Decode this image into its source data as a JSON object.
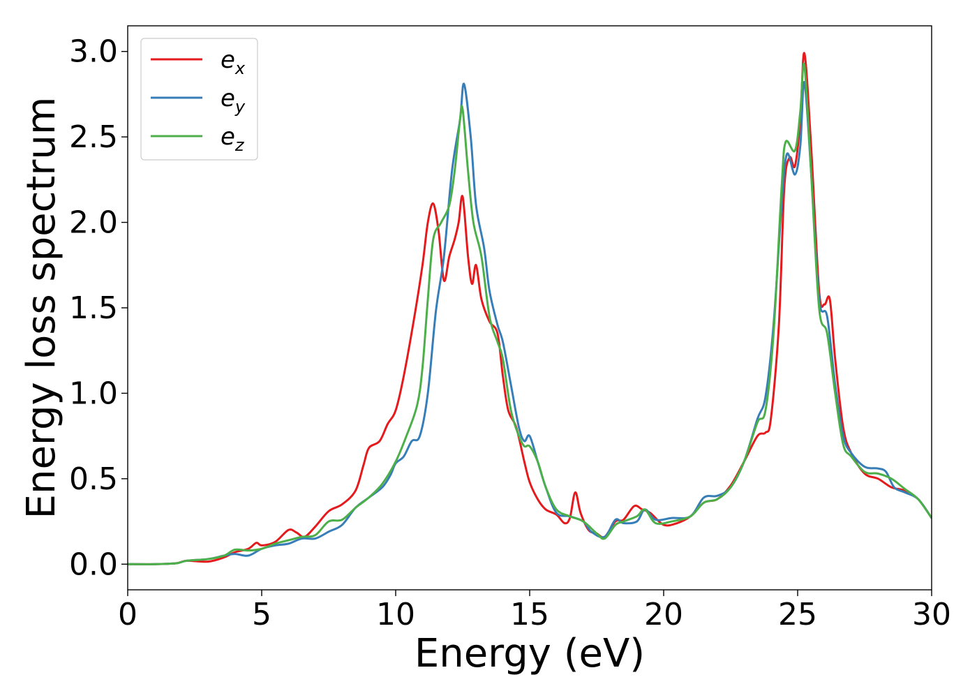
{
  "chart_data": {
    "type": "line",
    "xlabel": "Energy (eV)",
    "ylabel": "Energy loss spectrum",
    "xlim": [
      0,
      30
    ],
    "ylim": [
      -0.15,
      3.15
    ],
    "x_ticks": [
      "0",
      "5",
      "10",
      "15",
      "20",
      "25",
      "30"
    ],
    "y_ticks": [
      "0.0",
      "0.5",
      "1.0",
      "1.5",
      "2.0",
      "2.5",
      "3.0"
    ],
    "grid": false,
    "legend_position": "top-left",
    "series": [
      {
        "name": "e",
        "subscript": "x",
        "color": "#e41a1c",
        "points": [
          [
            0,
            0
          ],
          [
            1,
            0
          ],
          [
            1.8,
            0.005
          ],
          [
            2.2,
            0.02
          ],
          [
            3,
            0.015
          ],
          [
            3.6,
            0.04
          ],
          [
            4,
            0.07
          ],
          [
            4.5,
            0.09
          ],
          [
            4.8,
            0.125
          ],
          [
            5,
            0.11
          ],
          [
            5.5,
            0.13
          ],
          [
            6,
            0.2
          ],
          [
            6.3,
            0.185
          ],
          [
            6.6,
            0.16
          ],
          [
            7,
            0.22
          ],
          [
            7.5,
            0.31
          ],
          [
            8,
            0.35
          ],
          [
            8.5,
            0.43
          ],
          [
            8.8,
            0.58
          ],
          [
            9,
            0.68
          ],
          [
            9.4,
            0.72
          ],
          [
            9.7,
            0.82
          ],
          [
            10,
            0.9
          ],
          [
            10.3,
            1.1
          ],
          [
            10.7,
            1.45
          ],
          [
            11,
            1.75
          ],
          [
            11.2,
            2.0
          ],
          [
            11.4,
            2.11
          ],
          [
            11.6,
            1.95
          ],
          [
            11.8,
            1.66
          ],
          [
            12,
            1.8
          ],
          [
            12.2,
            1.9
          ],
          [
            12.35,
            2.0
          ],
          [
            12.5,
            2.15
          ],
          [
            12.7,
            1.8
          ],
          [
            12.85,
            1.64
          ],
          [
            13,
            1.75
          ],
          [
            13.2,
            1.55
          ],
          [
            13.5,
            1.42
          ],
          [
            13.8,
            1.35
          ],
          [
            14,
            1.1
          ],
          [
            14.2,
            0.9
          ],
          [
            14.5,
            0.8
          ],
          [
            14.8,
            0.6
          ],
          [
            15,
            0.48
          ],
          [
            15.3,
            0.38
          ],
          [
            15.6,
            0.32
          ],
          [
            16,
            0.29
          ],
          [
            16.3,
            0.24
          ],
          [
            16.5,
            0.27
          ],
          [
            16.7,
            0.42
          ],
          [
            16.9,
            0.3
          ],
          [
            17.2,
            0.2
          ],
          [
            17.5,
            0.18
          ],
          [
            17.8,
            0.16
          ],
          [
            18.2,
            0.25
          ],
          [
            18.5,
            0.26
          ],
          [
            18.9,
            0.34
          ],
          [
            19.2,
            0.32
          ],
          [
            19.5,
            0.3
          ],
          [
            20,
            0.23
          ],
          [
            20.5,
            0.24
          ],
          [
            21,
            0.28
          ],
          [
            21.5,
            0.36
          ],
          [
            22,
            0.38
          ],
          [
            22.5,
            0.46
          ],
          [
            23,
            0.6
          ],
          [
            23.5,
            0.75
          ],
          [
            23.8,
            0.77
          ],
          [
            24,
            0.85
          ],
          [
            24.3,
            1.4
          ],
          [
            24.5,
            2.2
          ],
          [
            24.7,
            2.38
          ],
          [
            24.9,
            2.33
          ],
          [
            25.1,
            2.6
          ],
          [
            25.25,
            2.99
          ],
          [
            25.5,
            2.45
          ],
          [
            25.8,
            1.6
          ],
          [
            26,
            1.52
          ],
          [
            26.2,
            1.55
          ],
          [
            26.4,
            1.2
          ],
          [
            26.7,
            0.8
          ],
          [
            27,
            0.65
          ],
          [
            27.5,
            0.53
          ],
          [
            28,
            0.5
          ],
          [
            28.5,
            0.45
          ],
          [
            29,
            0.43
          ],
          [
            29.5,
            0.38
          ],
          [
            30,
            0.27
          ]
        ]
      },
      {
        "name": "e",
        "subscript": "y",
        "color": "#377eb8",
        "points": [
          [
            0,
            0
          ],
          [
            1,
            0
          ],
          [
            1.8,
            0.005
          ],
          [
            2.2,
            0.02
          ],
          [
            3,
            0.03
          ],
          [
            3.6,
            0.05
          ],
          [
            4,
            0.06
          ],
          [
            4.5,
            0.05
          ],
          [
            5,
            0.09
          ],
          [
            5.5,
            0.11
          ],
          [
            6,
            0.12
          ],
          [
            6.5,
            0.15
          ],
          [
            7,
            0.15
          ],
          [
            7.5,
            0.19
          ],
          [
            8,
            0.23
          ],
          [
            8.5,
            0.33
          ],
          [
            9,
            0.39
          ],
          [
            9.5,
            0.45
          ],
          [
            9.8,
            0.52
          ],
          [
            10,
            0.59
          ],
          [
            10.3,
            0.63
          ],
          [
            10.6,
            0.72
          ],
          [
            10.9,
            0.75
          ],
          [
            11.2,
            1.0
          ],
          [
            11.5,
            1.48
          ],
          [
            11.8,
            1.8
          ],
          [
            12.1,
            2.3
          ],
          [
            12.4,
            2.6
          ],
          [
            12.55,
            2.81
          ],
          [
            12.8,
            2.5
          ],
          [
            13,
            2.1
          ],
          [
            13.3,
            1.85
          ],
          [
            13.5,
            1.6
          ],
          [
            13.8,
            1.4
          ],
          [
            14,
            1.3
          ],
          [
            14.3,
            1.05
          ],
          [
            14.6,
            0.8
          ],
          [
            14.8,
            0.72
          ],
          [
            15,
            0.75
          ],
          [
            15.3,
            0.6
          ],
          [
            15.6,
            0.45
          ],
          [
            16,
            0.3
          ],
          [
            16.5,
            0.28
          ],
          [
            17,
            0.25
          ],
          [
            17.3,
            0.19
          ],
          [
            17.8,
            0.16
          ],
          [
            18.2,
            0.26
          ],
          [
            18.5,
            0.24
          ],
          [
            19,
            0.25
          ],
          [
            19.3,
            0.32
          ],
          [
            19.7,
            0.26
          ],
          [
            20.3,
            0.27
          ],
          [
            21,
            0.28
          ],
          [
            21.5,
            0.39
          ],
          [
            22,
            0.4
          ],
          [
            22.5,
            0.45
          ],
          [
            23,
            0.6
          ],
          [
            23.5,
            0.85
          ],
          [
            23.8,
            0.98
          ],
          [
            24.1,
            1.4
          ],
          [
            24.4,
            2.1
          ],
          [
            24.6,
            2.4
          ],
          [
            24.9,
            2.28
          ],
          [
            25.1,
            2.45
          ],
          [
            25.25,
            2.82
          ],
          [
            25.5,
            2.3
          ],
          [
            25.8,
            1.55
          ],
          [
            26.1,
            1.45
          ],
          [
            26.4,
            1.05
          ],
          [
            26.7,
            0.75
          ],
          [
            27,
            0.65
          ],
          [
            27.5,
            0.57
          ],
          [
            28,
            0.56
          ],
          [
            28.3,
            0.54
          ],
          [
            28.6,
            0.45
          ],
          [
            29,
            0.42
          ],
          [
            29.5,
            0.38
          ],
          [
            30,
            0.27
          ]
        ]
      },
      {
        "name": "e",
        "subscript": "z",
        "color": "#4daf4a",
        "points": [
          [
            0,
            0
          ],
          [
            1,
            0
          ],
          [
            1.8,
            0.005
          ],
          [
            2.2,
            0.02
          ],
          [
            3,
            0.03
          ],
          [
            3.6,
            0.05
          ],
          [
            4,
            0.085
          ],
          [
            4.5,
            0.08
          ],
          [
            5,
            0.09
          ],
          [
            5.5,
            0.12
          ],
          [
            6,
            0.14
          ],
          [
            6.5,
            0.16
          ],
          [
            7,
            0.17
          ],
          [
            7.5,
            0.25
          ],
          [
            8,
            0.26
          ],
          [
            8.5,
            0.33
          ],
          [
            9,
            0.39
          ],
          [
            9.5,
            0.47
          ],
          [
            10,
            0.6
          ],
          [
            10.4,
            0.75
          ],
          [
            10.8,
            0.93
          ],
          [
            11,
            1.15
          ],
          [
            11.2,
            1.55
          ],
          [
            11.4,
            1.9
          ],
          [
            11.7,
            2.0
          ],
          [
            12,
            2.1
          ],
          [
            12.2,
            2.3
          ],
          [
            12.4,
            2.6
          ],
          [
            12.5,
            2.66
          ],
          [
            12.7,
            2.3
          ],
          [
            12.9,
            2.0
          ],
          [
            13.2,
            1.8
          ],
          [
            13.5,
            1.45
          ],
          [
            13.8,
            1.3
          ],
          [
            14,
            1.2
          ],
          [
            14.3,
            0.9
          ],
          [
            14.6,
            0.75
          ],
          [
            14.8,
            0.69
          ],
          [
            15,
            0.69
          ],
          [
            15.3,
            0.6
          ],
          [
            15.6,
            0.45
          ],
          [
            16,
            0.32
          ],
          [
            16.5,
            0.28
          ],
          [
            17,
            0.25
          ],
          [
            17.5,
            0.18
          ],
          [
            17.8,
            0.15
          ],
          [
            18.2,
            0.23
          ],
          [
            18.5,
            0.25
          ],
          [
            19,
            0.28
          ],
          [
            19.3,
            0.32
          ],
          [
            19.7,
            0.24
          ],
          [
            20.3,
            0.25
          ],
          [
            21,
            0.28
          ],
          [
            21.5,
            0.36
          ],
          [
            22,
            0.38
          ],
          [
            22.5,
            0.45
          ],
          [
            23,
            0.6
          ],
          [
            23.5,
            0.83
          ],
          [
            23.8,
            0.9
          ],
          [
            24.1,
            1.35
          ],
          [
            24.4,
            2.2
          ],
          [
            24.55,
            2.47
          ],
          [
            24.9,
            2.42
          ],
          [
            25.1,
            2.65
          ],
          [
            25.25,
            2.92
          ],
          [
            25.5,
            2.3
          ],
          [
            25.8,
            1.5
          ],
          [
            26.1,
            1.35
          ],
          [
            26.4,
            1.0
          ],
          [
            26.7,
            0.7
          ],
          [
            27,
            0.63
          ],
          [
            27.5,
            0.54
          ],
          [
            28,
            0.53
          ],
          [
            28.5,
            0.5
          ],
          [
            29,
            0.44
          ],
          [
            29.5,
            0.38
          ],
          [
            30,
            0.27
          ]
        ]
      }
    ]
  }
}
